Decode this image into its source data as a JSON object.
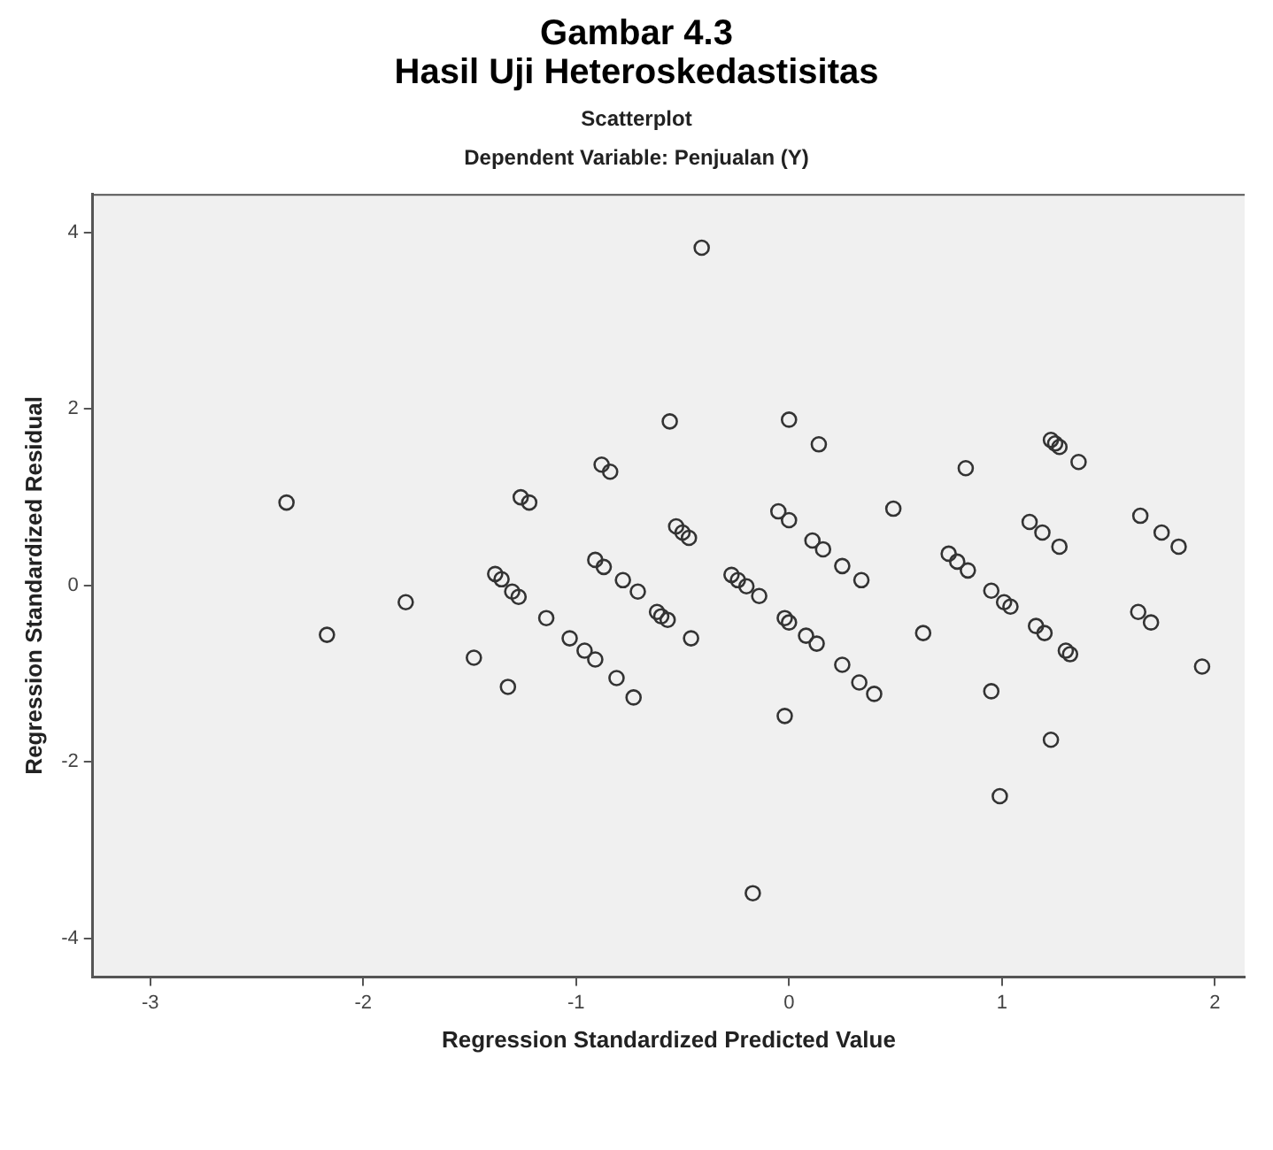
{
  "chart_data": {
    "type": "scatter",
    "title": "Gambar 4.3",
    "subtitle": "Hasil Uji Heteroskedastisitas",
    "annotations": [
      "Scatterplot",
      "Dependent Variable: Penjualan (Y)"
    ],
    "xlabel": "Regression Standardized Predicted Value",
    "ylabel": "Regression Standardized Residual",
    "xlim": [
      -3.27,
      2.14
    ],
    "ylim": [
      -4.44,
      4.44
    ],
    "xticks": [
      -3,
      -2,
      -1,
      0,
      1,
      2
    ],
    "yticks": [
      -4,
      -2,
      0,
      2,
      4
    ],
    "grid": false,
    "marker": "circle",
    "series": [
      {
        "color": "#333333",
        "x": [
          -2.36,
          -1.26,
          -1.22,
          -0.88,
          -0.84,
          -0.91,
          -0.87,
          -0.78,
          -1.38,
          -1.35,
          -1.3,
          -1.27,
          -1.8,
          -2.17,
          -1.14,
          -1.03,
          -0.96,
          -0.91,
          -0.81,
          -0.73,
          -1.48,
          -1.32,
          -0.41,
          -0.56,
          0.0,
          0.14,
          0.83,
          1.23,
          1.25,
          1.27,
          1.36,
          0.49,
          -0.53,
          -0.5,
          -0.47,
          -0.05,
          0.0,
          0.11,
          0.16,
          0.25,
          0.34,
          -0.71,
          -0.27,
          -0.24,
          -0.2,
          -0.14,
          0.75,
          0.79,
          0.84,
          0.95,
          1.13,
          1.19,
          1.27,
          1.65,
          1.75,
          1.83,
          -0.62,
          -0.6,
          -0.57,
          -0.46,
          -0.02,
          0.0,
          0.08,
          0.13,
          0.25,
          0.33,
          0.4,
          -0.02,
          -0.17,
          0.63,
          1.01,
          1.04,
          1.16,
          1.2,
          1.3,
          1.32,
          0.95,
          1.23,
          0.99,
          1.64,
          1.7,
          1.94
        ],
        "values": [
          0.94,
          1.0,
          0.94,
          1.37,
          1.29,
          0.29,
          0.21,
          0.06,
          0.13,
          0.07,
          -0.07,
          -0.13,
          -0.19,
          -0.56,
          -0.37,
          -0.6,
          -0.74,
          -0.84,
          -1.05,
          -1.27,
          -0.82,
          -1.15,
          3.83,
          1.86,
          1.88,
          1.6,
          1.33,
          1.65,
          1.61,
          1.57,
          1.4,
          0.87,
          0.67,
          0.6,
          0.54,
          0.84,
          0.74,
          0.51,
          0.41,
          0.22,
          0.06,
          -0.07,
          0.12,
          0.06,
          -0.01,
          -0.12,
          0.36,
          0.27,
          0.17,
          -0.06,
          0.72,
          0.6,
          0.44,
          0.79,
          0.6,
          0.44,
          -0.3,
          -0.35,
          -0.39,
          -0.6,
          -0.37,
          -0.42,
          -0.57,
          -0.66,
          -0.9,
          -1.1,
          -1.23,
          -1.48,
          -3.49,
          -0.54,
          -0.19,
          -0.24,
          -0.46,
          -0.54,
          -0.74,
          -0.78,
          -1.2,
          -1.75,
          -2.39,
          -0.3,
          -0.42,
          -0.92
        ]
      }
    ]
  }
}
